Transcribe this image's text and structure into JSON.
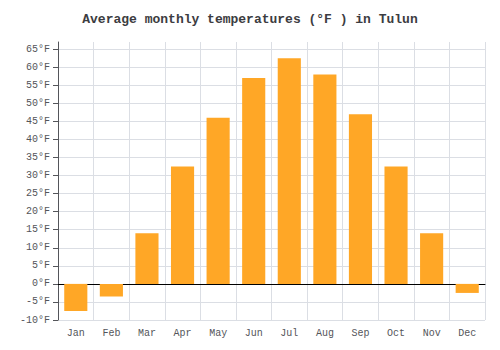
{
  "chart_data": {
    "type": "bar",
    "title": "Average monthly temperatures (°F ) in Tulun",
    "categories": [
      "Jan",
      "Feb",
      "Mar",
      "Apr",
      "May",
      "Jun",
      "Jul",
      "Aug",
      "Sep",
      "Oct",
      "Nov",
      "Dec"
    ],
    "values": [
      -7.5,
      -3.5,
      14,
      32.5,
      46,
      57,
      62.5,
      58,
      47,
      32.5,
      14,
      -2.5
    ],
    "color": "#FFA726",
    "ylim": [
      -10,
      67
    ],
    "yticks": [
      {
        "value": -10,
        "label": "-10°F"
      },
      {
        "value": -5,
        "label": "-5°F"
      },
      {
        "value": 0,
        "label": "0°F"
      },
      {
        "value": 5,
        "label": "5°F"
      },
      {
        "value": 10,
        "label": "10°F"
      },
      {
        "value": 15,
        "label": "15°F"
      },
      {
        "value": 20,
        "label": "20°F"
      },
      {
        "value": 25,
        "label": "25°F"
      },
      {
        "value": 30,
        "label": "30°F"
      },
      {
        "value": 35,
        "label": "35°F"
      },
      {
        "value": 40,
        "label": "40°F"
      },
      {
        "value": 45,
        "label": "45°F"
      },
      {
        "value": 50,
        "label": "50°F"
      },
      {
        "value": 55,
        "label": "55°F"
      },
      {
        "value": 60,
        "label": "60°F"
      },
      {
        "value": 65,
        "label": "65°F"
      }
    ],
    "grid": true
  }
}
